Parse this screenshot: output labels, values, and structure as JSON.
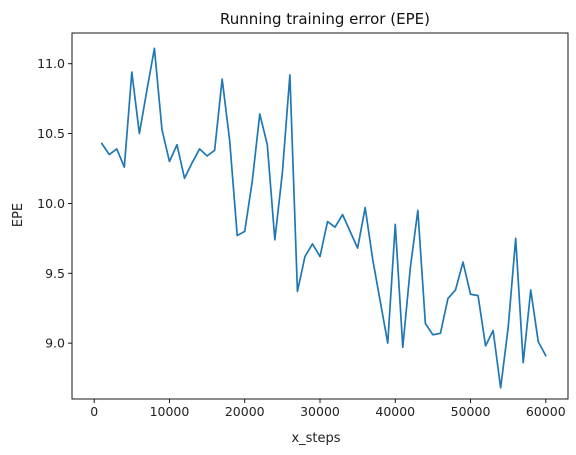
{
  "chart_data": {
    "type": "line",
    "title": "Running training error (EPE)",
    "xlabel": "x_steps",
    "ylabel": "EPE",
    "xlim": [
      -2950,
      62950
    ],
    "ylim": [
      8.6,
      11.22
    ],
    "x_ticks": [
      0,
      10000,
      20000,
      30000,
      40000,
      50000,
      60000
    ],
    "x_tick_labels": [
      "0",
      "10000",
      "20000",
      "30000",
      "40000",
      "50000",
      "60000"
    ],
    "y_ticks": [
      9.0,
      9.5,
      10.0,
      10.5,
      11.0
    ],
    "y_tick_labels": [
      "9.0",
      "9.5",
      "10.0",
      "10.5",
      "11.0"
    ],
    "grid": false,
    "legend": "none",
    "series": [
      {
        "color": "#1f77b4",
        "x": [
          1000,
          2000,
          3000,
          4000,
          5000,
          6000,
          7000,
          8000,
          9000,
          10000,
          11000,
          12000,
          13000,
          14000,
          15000,
          16000,
          17000,
          18000,
          19000,
          20000,
          21000,
          22000,
          23000,
          24000,
          25000,
          26000,
          27000,
          28000,
          29000,
          30000,
          31000,
          32000,
          33000,
          34000,
          35000,
          36000,
          37000,
          38000,
          39000,
          40000,
          41000,
          42000,
          43000,
          44000,
          45000,
          46000,
          47000,
          48000,
          49000,
          50000,
          51000,
          52000,
          53000,
          54000,
          55000,
          56000,
          57000,
          58000,
          59000,
          60000
        ],
        "y": [
          10.43,
          10.35,
          10.39,
          10.26,
          10.94,
          10.5,
          10.81,
          11.11,
          10.53,
          10.3,
          10.42,
          10.18,
          10.29,
          10.39,
          10.34,
          10.38,
          10.89,
          10.45,
          9.77,
          9.8,
          10.16,
          10.64,
          10.42,
          9.74,
          10.22,
          10.92,
          9.37,
          9.62,
          9.71,
          9.62,
          9.87,
          9.83,
          9.92,
          9.8,
          9.68,
          9.97,
          9.6,
          9.3,
          9.0,
          9.85,
          8.97,
          9.54,
          9.95,
          9.14,
          9.06,
          9.07,
          9.32,
          9.38,
          9.58,
          9.35,
          9.34,
          8.98,
          9.09,
          8.68,
          9.11,
          9.75,
          8.86,
          9.38,
          9.01,
          8.91
        ]
      }
    ]
  }
}
